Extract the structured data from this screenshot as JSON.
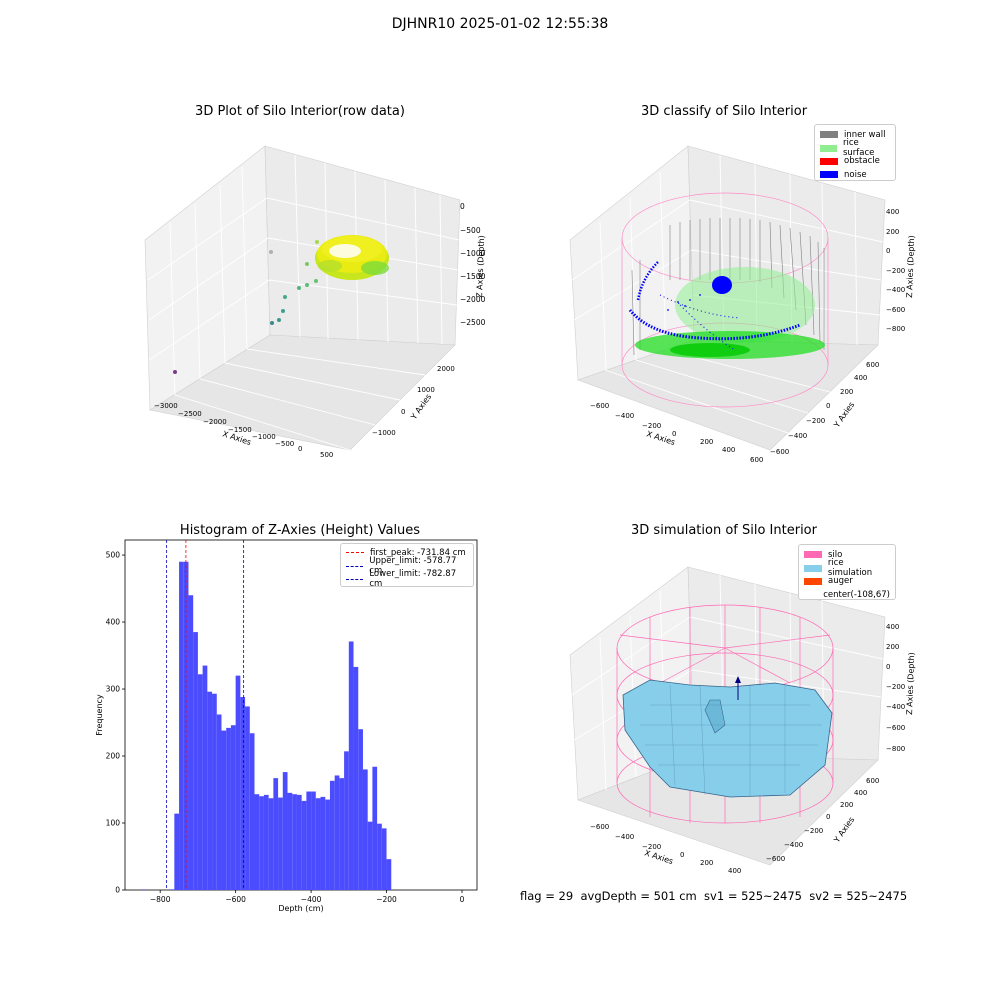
{
  "figure": {
    "suptitle": "DJHNR10 2025-01-02 12:55:38",
    "status_line": "flag = 29  avgDepth = 501 cm  sv1 = 525~2475  sv2 = 525~2475"
  },
  "chart_data": [
    {
      "type": "scatter",
      "title": "3D Plot of Silo Interior(row data)",
      "xlabel": "X Axies",
      "ylabel": "Y Axies",
      "zlabel": "Z Axies (Depth)",
      "x_ticks": [
        "−3000",
        "−2500",
        "−2000",
        "−1500",
        "−1000",
        "−500",
        "0",
        "500"
      ],
      "y_ticks": [
        "−1000",
        "0",
        "1000",
        "2000"
      ],
      "z_ticks": [
        "0",
        "−500",
        "−1000",
        "−1500",
        "−2000",
        "−2500"
      ],
      "outlier_points": [
        {
          "x": -2900,
          "y": -700,
          "z": -2900
        },
        {
          "x": -1300,
          "y": 1100,
          "z": -900
        },
        {
          "x": -700,
          "y": 700,
          "z": -1300
        }
      ],
      "grid": true
    },
    {
      "type": "scatter",
      "title": "3D classify of Silo Interior",
      "xlabel": "X Axies",
      "ylabel": "Y Axies",
      "zlabel": "Z Axies (Depth)",
      "x_ticks": [
        "−600",
        "−400",
        "−200",
        "0",
        "200",
        "400",
        "600"
      ],
      "y_ticks": [
        "−600",
        "−400",
        "−200",
        "0",
        "200",
        "400",
        "600"
      ],
      "z_ticks": [
        "400",
        "200",
        "0",
        "−200",
        "−400",
        "−600",
        "−800"
      ],
      "legend": [
        {
          "label": "inner wall",
          "color": "#808080"
        },
        {
          "label": "rice surface",
          "color": "#90ee90"
        },
        {
          "label": "obstacle",
          "color": "#ff0000"
        },
        {
          "label": "noise",
          "color": "#0000ff"
        }
      ],
      "legend_position": "top-right",
      "grid": true
    },
    {
      "type": "bar",
      "title": "Histogram of Z-Axies (Height) Values",
      "xlabel": "Depth (cm)",
      "ylabel": "Frequency",
      "xlim": [
        -880,
        0
      ],
      "ylim": [
        0,
        515
      ],
      "x_ticks": [
        -800,
        -600,
        -400,
        -200,
        0
      ],
      "y_ticks": [
        0,
        100,
        200,
        300,
        400,
        500
      ],
      "bin_width": 12.5,
      "bins": [
        {
          "x": -850,
          "value": 1
        },
        {
          "x": -775,
          "value": 1
        },
        {
          "x": -762.5,
          "value": 114
        },
        {
          "x": -750,
          "value": 490
        },
        {
          "x": -737.5,
          "value": 490
        },
        {
          "x": -725,
          "value": 440
        },
        {
          "x": -712.5,
          "value": 385
        },
        {
          "x": -700,
          "value": 322
        },
        {
          "x": -687.5,
          "value": 335
        },
        {
          "x": -675,
          "value": 296
        },
        {
          "x": -662.5,
          "value": 293
        },
        {
          "x": -650,
          "value": 262
        },
        {
          "x": -637.5,
          "value": 238
        },
        {
          "x": -625,
          "value": 242
        },
        {
          "x": -612.5,
          "value": 246
        },
        {
          "x": -600,
          "value": 320
        },
        {
          "x": -587.5,
          "value": 288
        },
        {
          "x": -575,
          "value": 274
        },
        {
          "x": -562.5,
          "value": 234
        },
        {
          "x": -550,
          "value": 143
        },
        {
          "x": -537.5,
          "value": 140
        },
        {
          "x": -525,
          "value": 142
        },
        {
          "x": -512.5,
          "value": 137
        },
        {
          "x": -500,
          "value": 167
        },
        {
          "x": -487.5,
          "value": 138
        },
        {
          "x": -475,
          "value": 176
        },
        {
          "x": -462.5,
          "value": 145
        },
        {
          "x": -450,
          "value": 143
        },
        {
          "x": -437.5,
          "value": 142
        },
        {
          "x": -425,
          "value": 133
        },
        {
          "x": -412.5,
          "value": 147
        },
        {
          "x": -400,
          "value": 147
        },
        {
          "x": -387.5,
          "value": 137
        },
        {
          "x": -375,
          "value": 139
        },
        {
          "x": -362.5,
          "value": 135
        },
        {
          "x": -350,
          "value": 163
        },
        {
          "x": -337.5,
          "value": 171
        },
        {
          "x": -325,
          "value": 167
        },
        {
          "x": -312.5,
          "value": 207
        },
        {
          "x": -300,
          "value": 371
        },
        {
          "x": -287.5,
          "value": 333
        },
        {
          "x": -275,
          "value": 240
        },
        {
          "x": -262.5,
          "value": 180
        },
        {
          "x": -250,
          "value": 102
        },
        {
          "x": -237.5,
          "value": 184
        },
        {
          "x": -225,
          "value": 99
        },
        {
          "x": -212.5,
          "value": 92
        },
        {
          "x": -200,
          "value": 46
        }
      ],
      "bar_color": "#4c4cff",
      "vlines": [
        {
          "label": "first_peak: -731.84 cm",
          "x": -731.84,
          "color": "#ff0000"
        },
        {
          "label": "Upper_limit: -578.77 cm",
          "x": -578.77,
          "color": "#0000b4"
        },
        {
          "label": "Lower_limit: -782.87 cm",
          "x": -782.87,
          "color": "#0000b4"
        }
      ],
      "legend_position": "top-right"
    },
    {
      "type": "surface",
      "title": "3D simulation of Silo Interior",
      "xlabel": "X Axies",
      "ylabel": "Y Axies",
      "zlabel": "Z Axies (Depth)",
      "x_ticks": [
        "−600",
        "−400",
        "−200",
        "0",
        "200",
        "400"
      ],
      "y_ticks": [
        "−600",
        "−400",
        "−200",
        "0",
        "200",
        "400",
        "600"
      ],
      "z_ticks": [
        "400",
        "200",
        "0",
        "−200",
        "−400",
        "−600",
        "−800"
      ],
      "legend": [
        {
          "label": "silo",
          "color": "#ff69b4"
        },
        {
          "label": "rice simulation",
          "color": "#87ceeb"
        },
        {
          "label": "auger",
          "color": "#ff4500"
        },
        {
          "label": "center(-108,67)",
          "color": ""
        }
      ],
      "legend_position": "top-right",
      "grid": true
    }
  ]
}
